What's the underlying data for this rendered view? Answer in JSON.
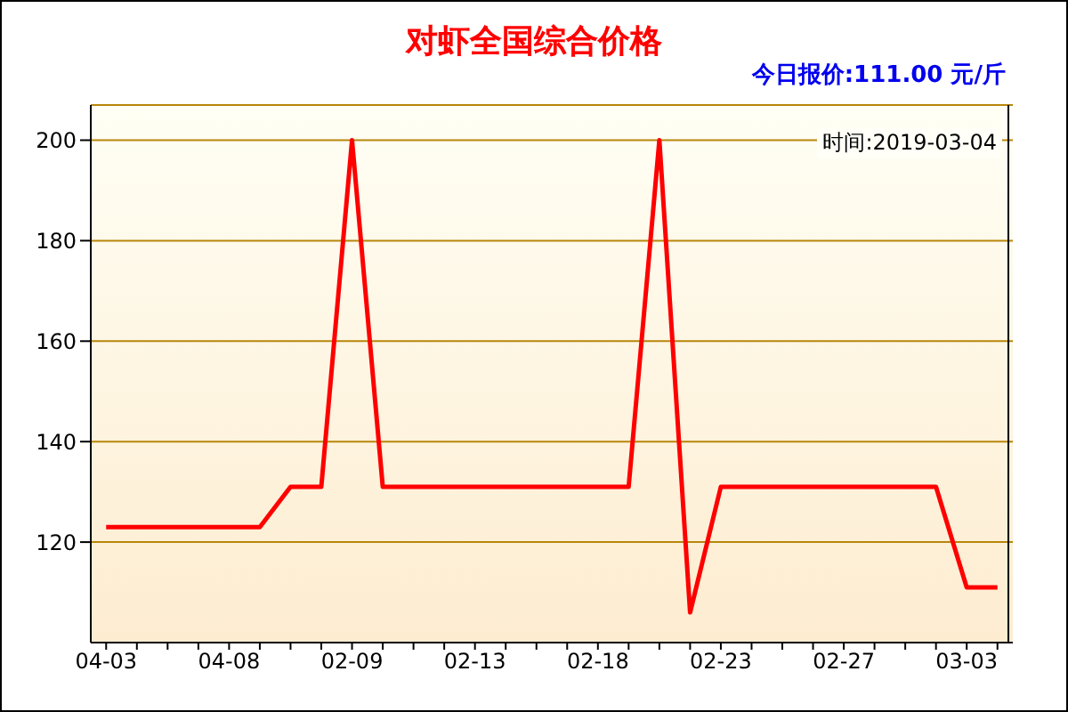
{
  "chart_data": {
    "type": "line",
    "title": "对虾全国综合价格",
    "annotations": [
      "今日报价:111.00 元/斤",
      "时间:2019-03-04"
    ],
    "categories": [
      "04-03",
      null,
      null,
      null,
      "04-08",
      null,
      null,
      null,
      "02-09",
      null,
      null,
      null,
      "02-13",
      null,
      null,
      null,
      "02-18",
      null,
      null,
      null,
      "02-23",
      null,
      null,
      null,
      "02-27",
      null,
      null,
      null,
      "03-03",
      null
    ],
    "series": [
      {
        "color": "#ff0000",
        "values": [
          123,
          123,
          123,
          123,
          123,
          123,
          131,
          131,
          200,
          131,
          131,
          131,
          131,
          131,
          131,
          131,
          131,
          131,
          200,
          106,
          131,
          131,
          131,
          131,
          131,
          131,
          131,
          131,
          111,
          111
        ]
      }
    ],
    "ylim": [
      100,
      207
    ],
    "yticks": [
      120,
      140,
      160,
      180,
      200
    ],
    "grid": "y",
    "marker": "none",
    "line_style": "solid"
  }
}
